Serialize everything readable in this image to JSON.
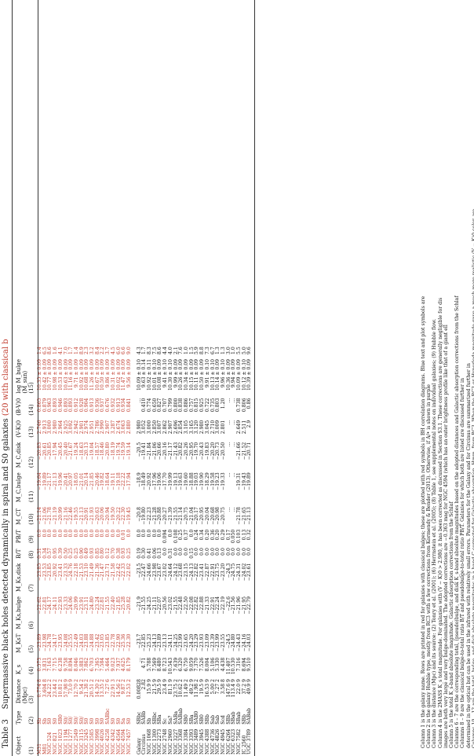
{
  "caption": {
    "label": "Table 3",
    "title": "Supermassive black holes detected dynamically in spiral and S0 galaxies",
    "title_red": "(20 with classical b"
  },
  "headers": [
    "Object",
    "Type",
    "Distance",
    "K_s",
    "M_KsT",
    "M_Ks,bulge",
    "M_Ks,disk",
    "B/T",
    "PB/T",
    "M_CT",
    "M_C,bulge",
    "M_C,disk",
    "(V-K)0",
    "(B-V)0",
    "log M_bulge"
  ],
  "units": [
    "",
    "",
    "(Mpc)",
    "",
    "",
    "",
    "",
    "",
    "",
    "",
    "",
    "",
    "",
    "",
    "(M_sun)"
  ],
  "colnums": [
    "(1)",
    "(2)",
    "(3)",
    "(4)",
    "(5)",
    "(6)",
    "(7)",
    "(8)",
    "(9)",
    "(10)",
    "(11)",
    "(12)",
    "(13)",
    "(14)",
    "(15)"
  ],
  "classical": [
    [
      "M31",
      "Sb",
      "0.774 8",
      "0.573",
      "−23.89",
      "−22.62",
      "−23.85",
      "0.31",
      "0.0",
      "−21.14",
      "−19.64",
      "−20.83",
      "2.746",
      "0.865",
      "10.35 ± 0.09",
      "1.4"
    ],
    [
      "M81",
      "Sb",
      "3.604 8",
      "3.831",
      "−23.98",
      "−22.81",
      "−23.53",
      "0.34",
      "0.0",
      "−21.06",
      "−19.89",
      "−20.61",
      "2.913",
      "0.879",
      "10.42 ± 0.09",
      "6.5"
    ],
    [
      "NGC 524",
      "S0",
      "24.22 2",
      "7.163",
      "−24.78",
      "−24.17",
      "−23.85",
      "0.57",
      "0.0",
      "−21.78",
      "−21.17",
      "−20.85",
      "3.000",
      "0.963",
      "10.77 ± 0.09",
      "8.6"
    ],
    [
      "NGC 821",
      "S0",
      "23.44 2",
      "7.715",
      "−24.17",
      "−24.11",
      "−20.92",
      "0.95",
      "0.0",
      "−21.19",
      "−21.13",
      "−17.94",
      "2.980",
      "0.893",
      "10.98 ± 0.09",
      "1.6"
    ],
    [
      "NGC 1023",
      "SB0",
      "10.81 2",
      "6.238",
      "−23.95",
      "−22.93",
      "−23.41",
      "0.39",
      "0.0",
      "−20.99",
      "−19.96",
      "−20.45",
      "2.964",
      "0.946",
      "10.53 ± 0.09",
      "4.1"
    ],
    [
      "NGC 1194",
      "S0/",
      "57.98 9",
      "9.758",
      "−24.08",
      "−23.33",
      "−23.33",
      "0.50",
      "0.0",
      "−21.16",
      "−20.41",
      "−20.40",
      "2.925",
      "0.893",
      "10.63 ± 0.09",
      "7.0"
    ],
    [
      "NGC 1277",
      "S0/",
      "73.0 9",
      "8.894",
      "−25.55",
      "−24.06",
      "−24.76",
      "0.25",
      "0.0",
      "−22.46",
      "−20.97",
      "−21.67",
      "3.092",
      "0.893",
      "11.16 ± 0.09",
      "1.7"
    ],
    [
      "NGC 2549",
      "S0/",
      "12.70 2",
      "8.046",
      "−22.49",
      "−20.99",
      "−22.18",
      "0.25",
      "0.0",
      "−19.55",
      "−18.05",
      "−19.24",
      "2.942",
      "0.912",
      "9.71 ± 0.09",
      "1.4"
    ],
    [
      "NGC 3115",
      "S0/",
      "9.54 2",
      "5.883",
      "−24.03",
      "−23.91",
      "−21.53",
      "0.90",
      "0.0",
      "−21.13",
      "−21.01",
      "−18.63",
      "2.901",
      "0.928",
      "10.92 ± 0.09",
      "8.9"
    ],
    [
      "NGC 3245",
      "S0",
      "21.38 2",
      "7.862",
      "−23.88",
      "−23.11",
      "−23.10",
      "0.49",
      "0.0",
      "−20.91",
      "−20.14",
      "−20.13",
      "2.974",
      "0.904",
      "10.68 ± 0.09",
      "2.3"
    ],
    [
      "NGC 3585",
      "S0",
      "20.51 2",
      "6.703",
      "−24.88",
      "−24.80",
      "−21.49",
      "0.93",
      "0.0",
      "−21.93",
      "−21.85",
      "−19.04",
      "2.951",
      "0.913",
      "11.26 ± 0.09",
      "3.2"
    ],
    [
      "NGC 3998",
      "S0",
      "14.30 2",
      "7.365",
      "−23.42",
      "−23.24",
      "−21.36",
      "0.85",
      "0.0",
      "−20.63",
      "−20.46",
      "−18.57",
      "2.786",
      "0.936",
      "10.67 ± 0.09",
      "8.4"
    ],
    [
      "NGC 4026",
      "S0",
      "13.35 2",
      "7.584",
      "−23.05",
      "−22.81",
      "−21.47",
      "0.80",
      "0.0",
      "−20.06",
      "−19.82",
      "−18.46",
      "2.990",
      "0.937",
      "10.50 ± 0.09",
      "2.2"
    ],
    [
      "NGC 4258",
      "SABbc",
      "7.27 6",
      "5.464",
      "−23.85",
      "−21.55",
      "−23.71",
      "0.12",
      "0.0",
      "−20.94",
      "−18.64",
      "−20.80",
      "2.907",
      "0.676",
      "9.86 ± 0.09",
      "3.7"
    ],
    [
      "NGC 4342",
      "S0",
      "22.91 3",
      "9.023",
      "−22.78",
      "−22.40",
      "−21.58",
      "0.70",
      "0.0",
      "−19.50",
      "−19.11",
      "−18.19",
      "3.287",
      "0.932",
      "10.31 ± 0.09",
      "4.5"
    ],
    [
      "NGC 4564",
      "S0",
      "14.56 2",
      "7.937",
      "−22.90",
      "−21.85",
      "−22.42",
      "0.38",
      "0.0",
      "−20.22",
      "−19.18",
      "−19.74",
      "2.674",
      "0.913",
      "10.02 ± 0.09",
      "6.0"
    ],
    [
      "NGC 4594",
      "Sa",
      "9.87 2",
      "4.625",
      "−25.36",
      "−25.28",
      "−22.33",
      "0.93",
      "0.01",
      "−22.30",
      "−22.22",
      "−19.59",
      "3.063",
      "0.934",
      "11.47 ± 0.09",
      "6.6"
    ],
    [
      "NGC 7457",
      "S0",
      "12.53 2",
      "8.179",
      "−22.30",
      "−20.82",
      "−22.02",
      "0.25",
      "0.0",
      "−19.45",
      "−17.94",
      "−19.14",
      "2.880",
      "0.841",
      "9.56 ± 0.09",
      "9.0"
    ]
  ],
  "pseudo": [
    [
      "Galaxy",
      "SBbc",
      "0.00828",
      "…",
      "−23.7",
      "−21.9",
      "−23.5",
      "0.19",
      "0.0",
      "−20.8",
      "−18.9",
      "−20.5",
      "2.980",
      "…",
      "10.09 ± 0.10",
      "4.3"
    ],
    [
      "Circinus",
      "SABb",
      "2.82",
      "4.71",
      "−22.85",
      "−21.55",
      "−22.47",
      "0.30",
      "0.0",
      "−19.80",
      "−18.49",
      "−19.41",
      "3.052",
      "0.410",
      "9.63 ± 0.14",
      "1.7"
    ],
    [
      "NGC 1068",
      "Sb",
      "15.9 9",
      "5.788",
      "−25.23",
      "−24.25",
      "−24.66",
      "0.41",
      "0.0",
      "−22.23",
      "−20.92",
      "−21.84",
      "3.000",
      "0.774",
      "10.92 ± 0.11",
      "8.3"
    ],
    [
      "NGC 1300",
      "SBbc",
      "21.5 9",
      "7.569",
      "−24.13",
      "−21.11",
      "−23.98",
      "0.06",
      "0.0",
      "−21.28",
      "−17.96",
      "−21.06",
      "2.850",
      "0.650",
      "10.01 ± 0.10",
      "7.5"
    ],
    [
      "NGC 2273",
      "SBa",
      "29.5 9",
      "8.480",
      "−23.89",
      "−22.07",
      "−23.67",
      "0.13",
      "0.0",
      "−20.88",
      "−19.06",
      "−20.66",
      "3.007",
      "0.827",
      "10.08 ± 0.09",
      "8.6"
    ],
    [
      "NGC 2748",
      "Sc",
      "23.4 9",
      "8.723",
      "−23.13",
      "−20.56",
      "−23.02",
      "0.0",
      "0.094",
      "−20.27",
      "−17.70",
      "−20.16",
      "2.862",
      "0.707",
      "9.41 ± 0.10",
      "4.4"
    ],
    [
      "NGC 2960",
      "Sa?",
      "81.1 9",
      "10.543",
      "−24.11",
      "−23.02",
      "−24.64",
      "0.31",
      "0.0",
      "−21.39",
      "−19.99",
      "−21.17",
      "2.907",
      "0.799",
      "10.30 ± 0.10",
      "4.0"
    ],
    [
      "NGC 3227",
      "SABa",
      "23.75 2",
      "7.639",
      "−24.25",
      "−21.55",
      "−24.12",
      "0.0",
      "0.108",
      "−21.55",
      "−19.13",
      "−21.43",
      "2.696",
      "0.800",
      "9.99 ± 0.09",
      "2.1"
    ],
    [
      "NGC 3368",
      "SABab",
      "10.62 2",
      "6.320",
      "−23.99",
      "−22.48",
      "−23.68",
      "0.0",
      "0.25",
      "−21.14",
      "−19.63",
      "−20.82",
      "2.854",
      "0.838",
      "10.26 ± 0.09",
      "7.6"
    ],
    [
      "NGC 3384",
      "SB0",
      "11.49 2",
      "6.750",
      "−23.65",
      "−22.50",
      "−23.15",
      "0.0",
      "0.37",
      "−20.75",
      "−19.60",
      "−20.26",
      "3.105",
      "0.886",
      "10.34 ± 0.09",
      "1.0"
    ],
    [
      "NGC 3393",
      "SBa",
      "49.2 9",
      "9.059",
      "−24.20",
      "−22.08",
      "−24.13",
      "0.15",
      "0.0",
      "−21.04",
      "−18.88",
      "−20.95",
      "3.165",
      "0.757",
      "10.15 ± 0.09",
      "1.5"
    ],
    [
      "NGC 3489",
      "SAB0",
      "11.98 2",
      "7.370",
      "−23.29",
      "−22.82",
      "−22.82",
      "0.0",
      "0.24",
      "−20.17",
      "−19.03",
      "−19.70",
      "3.120",
      "0.815",
      "10.11 ± 0.09",
      "5.9"
    ],
    [
      "NGC 3945",
      "SB0",
      "19.5 9",
      "7.526",
      "−23.93",
      "−22.88",
      "−23.41",
      "0.0",
      "0.34",
      "−20.95",
      "−19.90",
      "−20.43",
      "2.980",
      "0.925",
      "10.50 ± 0.09",
      "8.8"
    ],
    [
      "NGC 4388",
      "SBb",
      "16.53 9",
      "8.004",
      "−23.09",
      "−21.33",
      "−22.87",
      "0.0",
      "0.20",
      "−20.04",
      "−18.29",
      "−19.83",
      "3.045",
      "0.722",
      "9.91 ± 0.10",
      "7.3"
    ],
    [
      "NGC 4736",
      "Sab",
      "5.00 2",
      "5.106",
      "−23.39",
      "−22.91",
      "−22.91",
      "0.0",
      "0.36",
      "−20.68",
      "−19.58",
      "−20.20",
      "2.710",
      "0.735",
      "10.13 ± 0.10",
      "6.7"
    ],
    [
      "NGC 4826",
      "Sab",
      "7.27 2",
      "5.330",
      "−23.99",
      "−22.24",
      "−23.75",
      "0.0",
      "0.20",
      "−20.98",
      "−19.23",
      "−20.73",
      "3.009",
      "0.803",
      "10.14 ± 0.09",
      "1.3"
    ],
    [
      "NGC 4945",
      "Scd",
      "3.58 8",
      "4.438",
      "−23.55",
      "−22.19",
      "−23.20",
      "0.0",
      "0.29",
      "−20.75",
      "−19.33",
      "−20.50",
      "2.801",
      "1.20",
      "9.96 ± 0.10",
      "1.3"
    ],
    [
      "NGC 6264",
      "SBb",
      "147.6 9",
      "11.407",
      "−24.5",
      "−22.6",
      "−24.3",
      "0.0",
      "0.17",
      "…",
      "…",
      "…",
      "…",
      "…",
      "10.36 ± 0.09",
      "3.0"
    ],
    [
      "NGC 6323",
      "SBab",
      "113.4 9",
      "10.530",
      "−24.80",
      "−21.56",
      "−24.75",
      "0.0",
      "0.050",
      "…",
      "…",
      "…",
      "…",
      "…",
      "9.94 ± 0.09",
      "1.0"
    ],
    [
      "NGC 7582",
      "SBab",
      "22.0 9",
      "7.316",
      "−24.43",
      "−21.96",
      "−24.31",
      "0.0",
      "0.103",
      "−21.78",
      "−19.31",
      "−21.66",
      "2.649",
      "0.738",
      "10.09 ± 0.09",
      "5.5"
    ],
    [
      "IC 2560",
      "SBb",
      "37.2 9",
      "8.694",
      "−24.16",
      "−21.95",
      "−24.02",
      "0.0",
      "0.13",
      "−21.65",
      "−19.43",
      "−21.52",
      "2.511",
      "0.806",
      "10.12 ± 0.10",
      "5.0"
    ],
    [
      "UGC 3789",
      "SABab",
      "49.9 9",
      "9.510",
      "−24.03",
      "−22.79",
      "−23.61",
      "0.0",
      "0.32",
      "−21.13",
      "−19.89",
      "−20.71",
      "2.9",
      "0.86",
      "10.39 ± 0.09",
      "9.6"
    ]
  ],
  "notes": [
    {
      "text": "Column 1 is the galaxy name.  Rows are printed in red for galaxies with classical bulges; these are plotted with red symbols in BH correlation diagrams. Blue text and plot symbols are",
      "hl": "red"
    },
    {
      "text": "Column 2 is the galaxy Hubble type, mostly from RC3 with a few corrections from Kormendy & Bender (2013).                                                   Otherwise, if A/• is shown in purple",
      "hl": ""
    },
    {
      "text": "Column 3 is the distance (Mpc) and its source: (2) Tonry et al. (2001); (6) Herrnstein et al. (2005); (8) Table 1, see supplemental notes on individual galaxies; (9) Hubble flow.",
      "hl": ""
    },
    {
      "text": "Column 4 is the 2MASS K_s total magnitude.  For galaxies with (V − K)0 > 2.980, it has been corrected as discussed in Section S3.1.  These corrections are generally negligible for dis",
      "hl": ""
    },
    {
      "text": "    images are both very large and very bulge-dominated.  The adopted corrections are −0.363 mag for NGC 4594 (which has an outer brightness profile like that of a giant ell",
      "hl": ""
    },
    {
      "text": "Column 5 is the total K_s-band absolute magnitude.  Galactic absorption corrections from the Schlaf",
      "hl": ""
    },
    {
      "text": "Columns 6 – 7 are the corresponding total, (pseudo)bulge, and disk K_s-band absolute magnitudes based on the adopted distances and Galactic absorption corrections from the Schlaf",
      "hl": ""
    },
    {
      "text": "Columns 8 – 9 are the classical bulge-to-total ratio B/T and pseudobulge-to-total ratio PB/T.  Galaxies for which both are listed are discussed further in",
      "hl": ""
    },
    {
      "text": "    determined in the optical but can be used in the infrared with relatively small errors.  Parameters for the Galaxy and for Circinus are summarized further in",
      "hl": ""
    },
    {
      "text": "Columns 10 – 12 are the total, bulge, and disk absolute magnitudes in a band C corrected for Galactic absorption.  Hmm, from RC3.  When the RC3 or Hyperleda magnitude gave a much more realistic (V − K)0 color, we",
      "hl": ""
    },
    {
      "text": "    \"integrated photometry\" B_T, usually from RC3, and subtracted (B − V)_T, usually from RC3.  When the RC3 or Hyperleda magnitude gave a much more realistic (V − K)0 color, we",
      "hl": ""
    },
    {
      "text": "    the same as the K_s-band values.                 For two galaxies, optical and infrared measurements imply different (pseudo)bulge-to-total ratios.  Then we used (B/T)_V = 0.25 for M 31",
      "hl": ""
    },
    {
      "text": "Column 13 is the (V − K)0 color of the galaxy corrected for Galactic reddening.",
      "hl": ""
    }
  ]
}
